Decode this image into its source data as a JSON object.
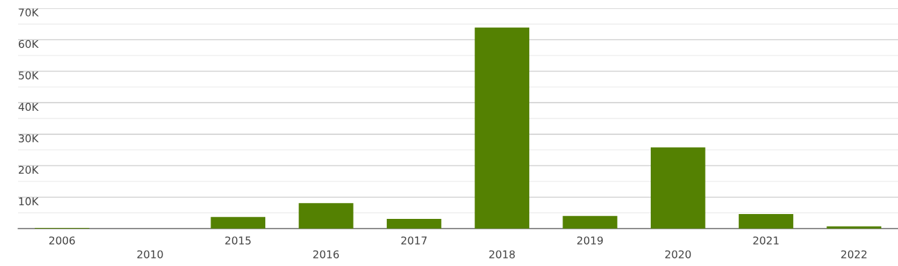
{
  "chart_data": {
    "type": "bar",
    "categories": [
      "2006",
      "2010",
      "2015",
      "2016",
      "2017",
      "2018",
      "2019",
      "2020",
      "2021",
      "2022"
    ],
    "values": [
      200,
      0,
      3700,
      8100,
      3100,
      63900,
      4000,
      25800,
      4600,
      700
    ],
    "color": "#548102",
    "ylim": [
      0,
      70000
    ],
    "yticks": [
      {
        "value": 0,
        "label": null
      },
      {
        "value": 10000,
        "label": "10K"
      },
      {
        "value": 20000,
        "label": "20K"
      },
      {
        "value": 30000,
        "label": "30K"
      },
      {
        "value": 40000,
        "label": "40K"
      },
      {
        "value": 50000,
        "label": "50K"
      },
      {
        "value": 60000,
        "label": "60K"
      },
      {
        "value": 70000,
        "label": "70K"
      }
    ],
    "grid": "y"
  }
}
